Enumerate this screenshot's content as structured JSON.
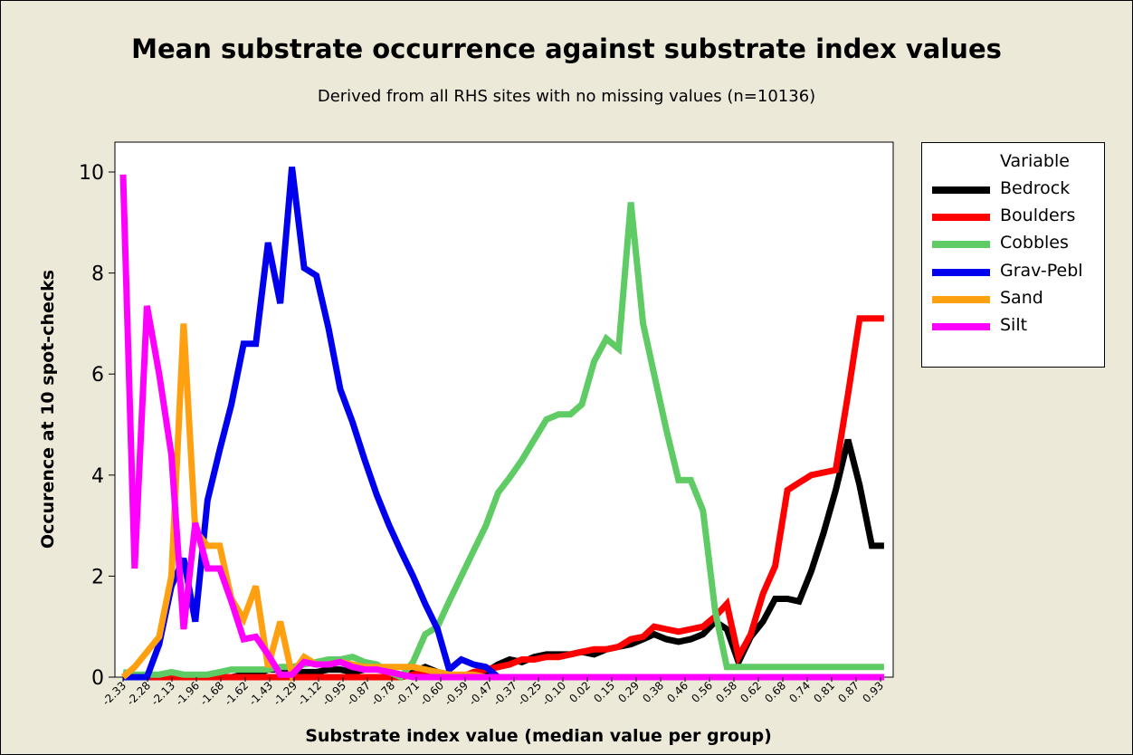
{
  "chart_data": {
    "type": "line",
    "title": "Mean substrate occurrence against substrate index values",
    "subtitle": "Derived from all RHS sites with no missing values (n=10136)",
    "xlabel": "Substrate index value (median value per group)",
    "ylabel": "Occurence at 10 spot-checks",
    "ylim": [
      0,
      10.5
    ],
    "yticks": [
      "0",
      "2",
      "4",
      "6",
      "8",
      "10"
    ],
    "yticks_values": [
      0,
      2,
      4,
      6,
      8,
      10
    ],
    "grid": false,
    "legend": {
      "title": "Variable",
      "position": "right"
    },
    "categories": [
      "-2.33",
      "-2.28",
      "-2.13",
      "-1.96",
      "-1.68",
      "-1.62",
      "-1.43",
      "-1.29",
      "-1.12",
      "-0.95",
      "-0.87",
      "-0.78",
      "-0.71",
      "-0.60",
      "-0.59",
      "-0.47",
      "-0.37",
      "-0.25",
      "-0.10",
      "0.02",
      "0.15",
      "0.29",
      "0.38",
      "0.46",
      "0.56",
      "0.58",
      "0.62",
      "0.68",
      "0.74",
      "0.81",
      "0.87",
      "0.93"
    ],
    "x": [
      1,
      1.95,
      2.95,
      3.95,
      4.95,
      5.95,
      6.9,
      7.9,
      8.9,
      9.85,
      10.85,
      11.85,
      12.85,
      13.85,
      14.8,
      15.8,
      16.8,
      17.8,
      18.75,
      19.75,
      20.75,
      21.75,
      22.75,
      23.7,
      24.7,
      25.7,
      26.7,
      27.65,
      28.65,
      29.65,
      30.65,
      31.65,
      32.6,
      33.6,
      34.6,
      35.6,
      36.6,
      37.55,
      38.5,
      39.5,
      40.5,
      41.5,
      42.5,
      43.5,
      44.4,
      45.4,
      46.4,
      47.4,
      48.4,
      49.4,
      50.35,
      51.3,
      52.3,
      53.3,
      54.3,
      55.3,
      56.25,
      57.25,
      58.25,
      59.25,
      60.25,
      61.2,
      62.2,
      63.2
    ],
    "series": [
      {
        "name": "Bedrock",
        "color": "#000000",
        "values": [
          0,
          0,
          0,
          0,
          0,
          0,
          0,
          0,
          0,
          0,
          0.05,
          0.05,
          0.15,
          0.15,
          0.1,
          0.1,
          0.1,
          0.15,
          0.15,
          0.1,
          0.15,
          0.2,
          0.1,
          0.05,
          0.1,
          0.2,
          0.1,
          0.05,
          0,
          0,
          0.1,
          0.25,
          0.35,
          0.3,
          0.4,
          0.45,
          0.45,
          0.45,
          0.5,
          0.45,
          0.55,
          0.6,
          0.65,
          0.75,
          0.85,
          0.75,
          0.7,
          0.75,
          0.85,
          1.1,
          0.95,
          0.3,
          0.8,
          1.1,
          1.55,
          1.55,
          1.5,
          2.1,
          2.85,
          3.7,
          4.7,
          3.8,
          2.6,
          2.6
        ]
      },
      {
        "name": "Boulders",
        "color": "#ff0000",
        "values": [
          0,
          0,
          0,
          0,
          0,
          0,
          0,
          0,
          0,
          0,
          0,
          0,
          0,
          0,
          0,
          0,
          0,
          0,
          0,
          0,
          0,
          0,
          0,
          0,
          0.05,
          0.1,
          0.05,
          0,
          0,
          0.1,
          0.15,
          0.2,
          0.25,
          0.35,
          0.35,
          0.4,
          0.4,
          0.45,
          0.5,
          0.55,
          0.55,
          0.6,
          0.75,
          0.8,
          1.0,
          0.95,
          0.9,
          0.95,
          1.0,
          1.2,
          1.45,
          0.4,
          0.85,
          1.65,
          2.2,
          3.7,
          3.85,
          4.0,
          4.05,
          4.1,
          5.6,
          7.1,
          7.1,
          7.1
        ]
      },
      {
        "name": "Cobbles",
        "color": "#5ecb64",
        "values": [
          0.1,
          0.05,
          0.05,
          0.05,
          0.1,
          0.05,
          0.05,
          0.05,
          0.1,
          0.15,
          0.15,
          0.15,
          0.15,
          0.2,
          0.2,
          0.25,
          0.3,
          0.35,
          0.35,
          0.4,
          0.3,
          0.25,
          0.1,
          0.0,
          0.3,
          0.85,
          1.0,
          1.5,
          2.0,
          2.5,
          3.0,
          3.65,
          3.95,
          4.3,
          4.7,
          5.1,
          5.2,
          5.2,
          5.4,
          6.25,
          6.7,
          6.5,
          9.4,
          7.0,
          6.0,
          4.9,
          3.9,
          3.9,
          3.3,
          1.3,
          0.2,
          0.2,
          0.2,
          0.2,
          0.2,
          0.2,
          0.2,
          0.2,
          0.2,
          0.2,
          0.2,
          0.2,
          0.2,
          0.2
        ]
      },
      {
        "name": "Grav-Pebl",
        "color": "#0000ee",
        "values": [
          0,
          0,
          0,
          0.65,
          1.8,
          2.35,
          1.1,
          3.5,
          4.5,
          5.4,
          6.6,
          6.6,
          8.6,
          7.4,
          10.1,
          8.1,
          7.95,
          6.9,
          5.7,
          5.05,
          4.3,
          3.6,
          3.0,
          2.5,
          2.0,
          1.45,
          0.95,
          0.15,
          0.35,
          0.25,
          0.2,
          0,
          0,
          0,
          0,
          0,
          0,
          0,
          0,
          0,
          0,
          0,
          0,
          0,
          0,
          0,
          0,
          0,
          0,
          0,
          0,
          0,
          0,
          0,
          0,
          0,
          0,
          0,
          0,
          0,
          0,
          0,
          0,
          0
        ]
      },
      {
        "name": "Sand",
        "color": "#ffa010",
        "values": [
          0,
          0.2,
          0.5,
          0.8,
          2.0,
          7.0,
          2.9,
          2.6,
          2.6,
          1.55,
          1.15,
          1.8,
          0.2,
          1.1,
          0.05,
          0.4,
          0.25,
          0.25,
          0.3,
          0.25,
          0.2,
          0.2,
          0.2,
          0.2,
          0.2,
          0.15,
          0.1,
          0.05,
          0.05,
          0.05,
          0,
          0,
          0,
          0,
          0,
          0,
          0,
          0,
          0,
          0,
          0,
          0,
          0,
          0,
          0,
          0,
          0,
          0,
          0,
          0,
          0,
          0,
          0,
          0,
          0,
          0,
          0,
          0,
          0,
          0,
          0,
          0,
          0,
          0
        ]
      },
      {
        "name": "Silt",
        "color": "#ff00ff",
        "values": [
          9.95,
          2.15,
          7.35,
          6.0,
          4.4,
          0.95,
          3.05,
          2.15,
          2.15,
          1.5,
          0.75,
          0.8,
          0.45,
          0.05,
          0.05,
          0.3,
          0.25,
          0.25,
          0.3,
          0.2,
          0.15,
          0.15,
          0.1,
          0.05,
          0,
          0,
          0,
          0,
          0,
          0,
          0,
          0,
          0,
          0,
          0,
          0,
          0,
          0,
          0,
          0,
          0,
          0,
          0,
          0,
          0,
          0,
          0,
          0,
          0,
          0,
          0,
          0,
          0,
          0,
          0,
          0,
          0,
          0,
          0,
          0,
          0,
          0,
          0,
          0
        ]
      }
    ]
  }
}
